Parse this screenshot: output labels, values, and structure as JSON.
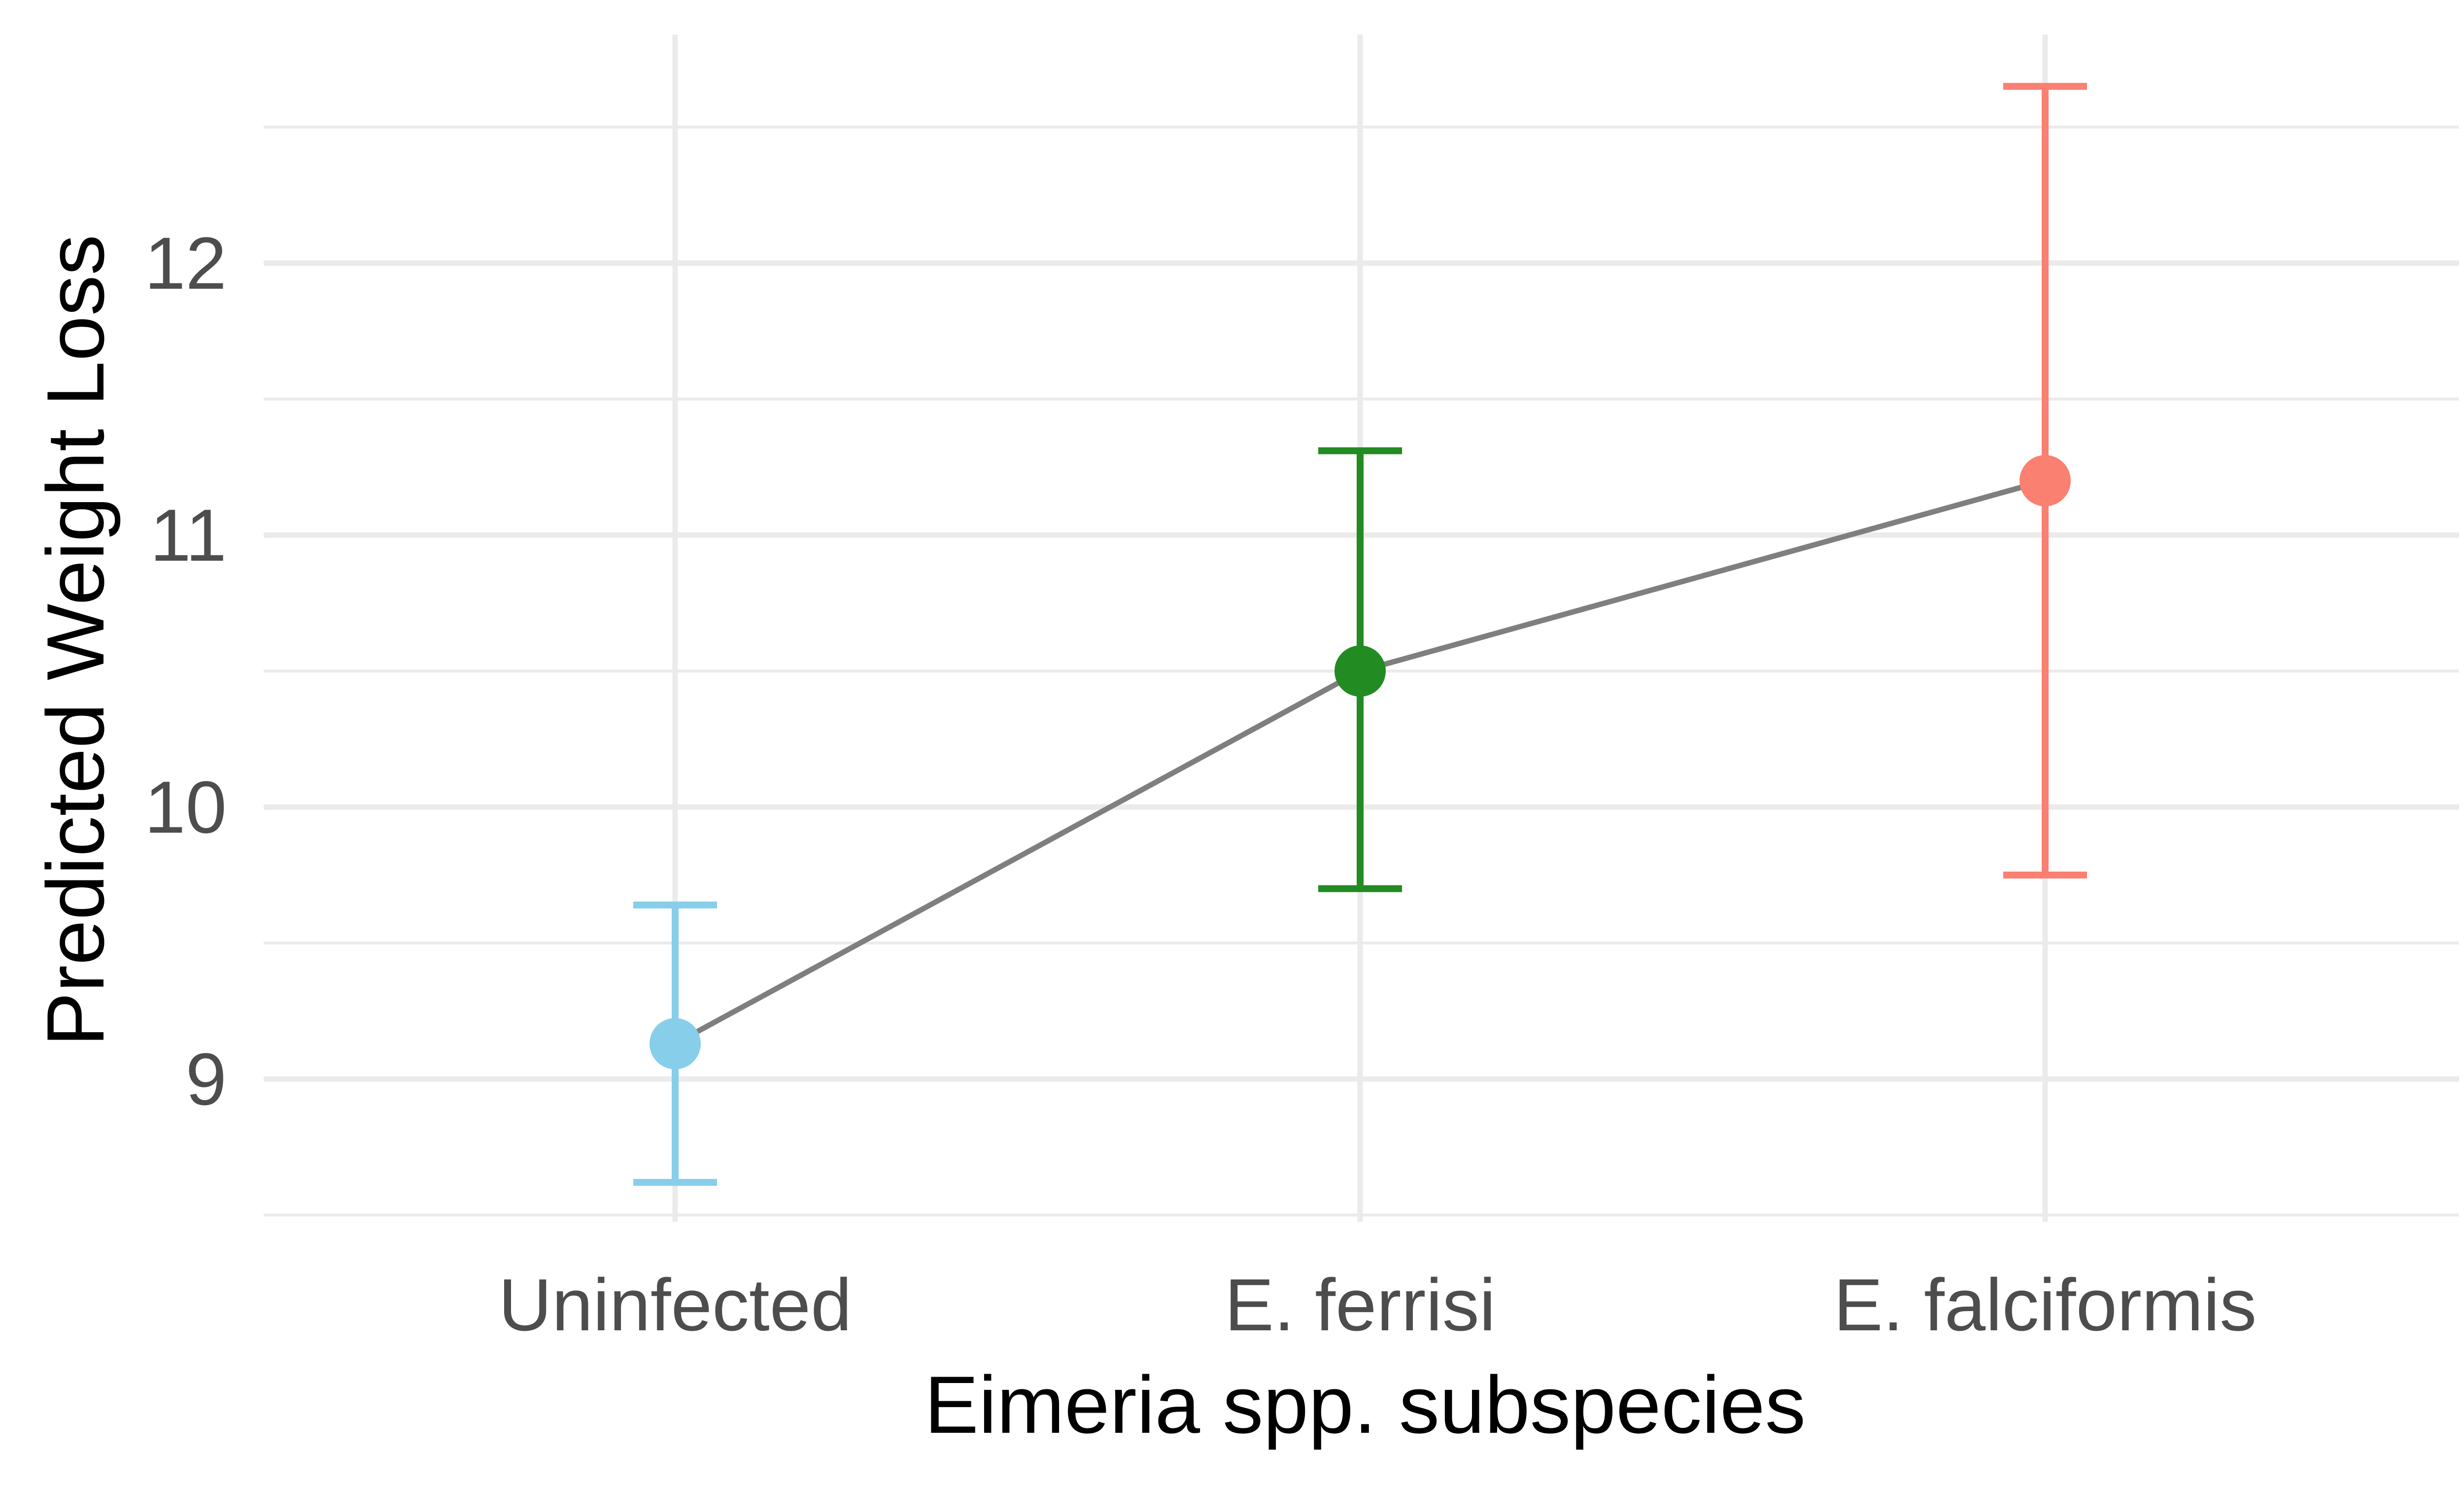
{
  "chart_data": {
    "type": "scatter",
    "xlabel": "Eimeria spp. subspecies",
    "ylabel": "Predicted Weight Loss",
    "categories": [
      "Uninfected",
      "E. ferrisi",
      "E. falciformis"
    ],
    "points": [
      {
        "category": "Uninfected",
        "y": 9.13,
        "ymin": 8.62,
        "ymax": 9.64,
        "color": "#87ceeb"
      },
      {
        "category": "E. ferrisi",
        "y": 10.5,
        "ymin": 9.7,
        "ymax": 11.31,
        "color": "#228b22"
      },
      {
        "category": "E. falciformis",
        "y": 11.2,
        "ymin": 9.75,
        "ymax": 12.65,
        "color": "#fa8072"
      }
    ],
    "ylim": [
      8.5,
      12.75
    ],
    "yticks": [
      "9",
      "10",
      "11",
      "12"
    ],
    "ytick_values": [
      9,
      10,
      11,
      12
    ],
    "yminor_values": [
      8.5,
      9.5,
      10.5,
      11.5,
      12.5
    ],
    "line_color": "#7f7f7f",
    "grid": true,
    "legend": "none"
  }
}
